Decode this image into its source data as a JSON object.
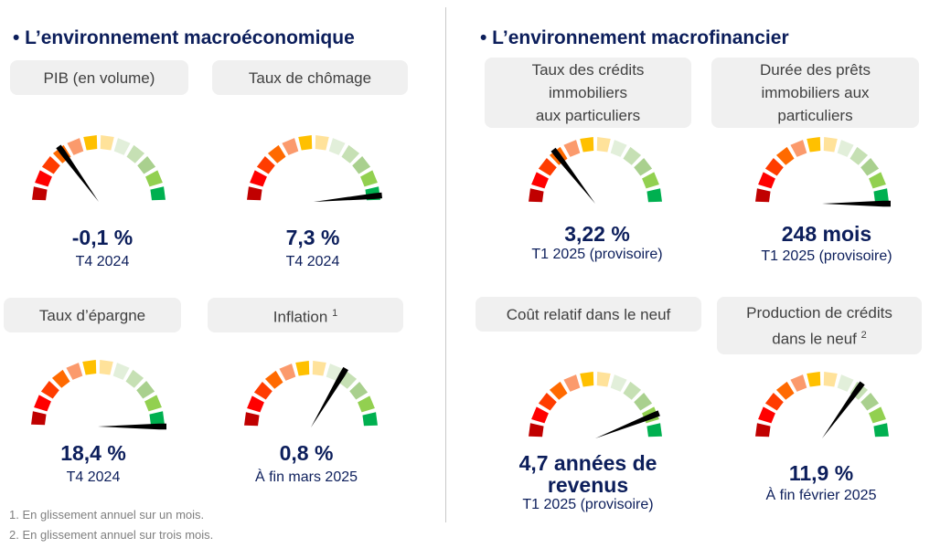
{
  "sections": {
    "macro": {
      "title": "• L’environnement macroéconomique"
    },
    "fin": {
      "title": "• L’environnement macrofinancier"
    }
  },
  "segment_colors": [
    "#c00000",
    "#ff0000",
    "#ff3c00",
    "#ff6a00",
    "#fb9a6c",
    "#ffc000",
    "#ffe29a",
    "#e2efda",
    "#c6e0b4",
    "#a9d08e",
    "#92d050",
    "#00b050"
  ],
  "colors": {
    "title": "#0c1e5b",
    "label_bg": "#f0f0f0",
    "needle": "#000000"
  },
  "chart_data": [
    {
      "type": "gauge",
      "title": "PIB (en volume)",
      "value": "-0,1 %",
      "period": "T4 2024",
      "needle_fraction": 0.3
    },
    {
      "type": "gauge",
      "title": "Taux de chômage",
      "value": "7,3 %",
      "period": "T4 2024",
      "needle_fraction": 0.97
    },
    {
      "type": "gauge",
      "title": "Taux d’épargne",
      "value": "18,4 %",
      "period": "T4 2024",
      "needle_fraction": 1.0
    },
    {
      "type": "gauge",
      "title": "Inflation",
      "title_sup": "1",
      "value": "0,8 %",
      "period": "À fin mars 2025",
      "needle_fraction": 0.67
    },
    {
      "type": "gauge",
      "title_lines": [
        "Taux des crédits",
        "immobiliers",
        "aux particuliers"
      ],
      "value": "3,22 %",
      "period": "T1 2025 (provisoire)",
      "needle_fraction": 0.29
    },
    {
      "type": "gauge",
      "title_lines": [
        "Durée des prêts",
        "immobiliers aux",
        "particuliers"
      ],
      "value": "248 mois",
      "period": "T1 2025 (provisoire)",
      "needle_fraction": 1.0
    },
    {
      "type": "gauge",
      "title": "Coût relatif dans le neuf",
      "value_lines": [
        "4,7 années de",
        "revenus"
      ],
      "period": "T1 2025 (provisoire)",
      "needle_fraction": 0.88
    },
    {
      "type": "gauge",
      "title_lines": [
        "Production de crédits",
        "dans le neuf"
      ],
      "title_sup": "2",
      "value": "11,9 %",
      "period": "À fin février 2025",
      "needle_fraction": 0.7
    }
  ],
  "footnotes": [
    "1. En glissement annuel sur un mois.",
    "2. En glissement annuel sur trois mois."
  ]
}
